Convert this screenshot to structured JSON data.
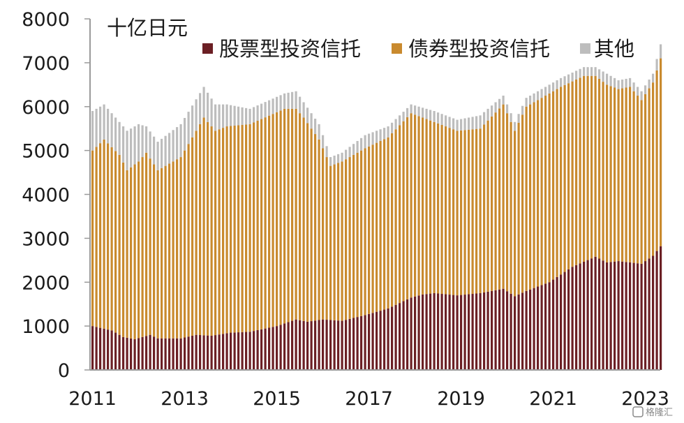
{
  "chart_data": {
    "type": "bar",
    "stacked": true,
    "unit": "十亿日元",
    "ylim": [
      0,
      8000
    ],
    "yticks": [
      0,
      1000,
      2000,
      3000,
      4000,
      5000,
      6000,
      7000,
      8000
    ],
    "xticks": [
      "2011",
      "2013",
      "2015",
      "2017",
      "2019",
      "2021",
      "2023"
    ],
    "xlim_months": [
      "2011-01",
      "2023-05"
    ],
    "grid": false,
    "legend_position": "top",
    "watermark": "格隆汇",
    "series": [
      {
        "name": "股票型投资信托",
        "color": "#6b1f24",
        "anchors": [
          [
            "2011-01",
            1000
          ],
          [
            "2011-06",
            900
          ],
          [
            "2011-09",
            750
          ],
          [
            "2011-12",
            700
          ],
          [
            "2012-04",
            800
          ],
          [
            "2012-06",
            720
          ],
          [
            "2012-12",
            720
          ],
          [
            "2013-04",
            800
          ],
          [
            "2013-08",
            780
          ],
          [
            "2014-01",
            850
          ],
          [
            "2014-06",
            870
          ],
          [
            "2015-01",
            1000
          ],
          [
            "2015-06",
            1150
          ],
          [
            "2015-09",
            1100
          ],
          [
            "2016-01",
            1150
          ],
          [
            "2016-06",
            1120
          ],
          [
            "2016-12",
            1250
          ],
          [
            "2017-06",
            1400
          ],
          [
            "2017-12",
            1650
          ],
          [
            "2018-03",
            1720
          ],
          [
            "2018-06",
            1750
          ],
          [
            "2018-12",
            1700
          ],
          [
            "2019-06",
            1750
          ],
          [
            "2019-12",
            1850
          ],
          [
            "2020-03",
            1680
          ],
          [
            "2020-06",
            1800
          ],
          [
            "2020-12",
            2000
          ],
          [
            "2021-06",
            2350
          ],
          [
            "2021-12",
            2580
          ],
          [
            "2022-03",
            2450
          ],
          [
            "2022-06",
            2480
          ],
          [
            "2022-09",
            2450
          ],
          [
            "2022-12",
            2420
          ],
          [
            "2023-03",
            2600
          ],
          [
            "2023-05",
            2820
          ]
        ]
      },
      {
        "name": "债券型投资信托",
        "color": "#c98a2e",
        "anchors": [
          [
            "2011-01",
            5000
          ],
          [
            "2011-04",
            5250
          ],
          [
            "2011-08",
            4900
          ],
          [
            "2011-10",
            4550
          ],
          [
            "2012-01",
            4750
          ],
          [
            "2012-03",
            4950
          ],
          [
            "2012-06",
            4550
          ],
          [
            "2012-12",
            4850
          ],
          [
            "2013-06",
            5750
          ],
          [
            "2013-09",
            5450
          ],
          [
            "2013-12",
            5550
          ],
          [
            "2014-06",
            5600
          ],
          [
            "2015-03",
            5950
          ],
          [
            "2015-06",
            5950
          ],
          [
            "2015-08",
            5750
          ],
          [
            "2015-12",
            5250
          ],
          [
            "2016-03",
            4650
          ],
          [
            "2016-06",
            4750
          ],
          [
            "2016-12",
            5050
          ],
          [
            "2017-06",
            5300
          ],
          [
            "2017-12",
            5850
          ],
          [
            "2018-06",
            5650
          ],
          [
            "2018-12",
            5450
          ],
          [
            "2019-06",
            5500
          ],
          [
            "2019-12",
            6050
          ],
          [
            "2020-03",
            5450
          ],
          [
            "2020-06",
            6000
          ],
          [
            "2020-09",
            6150
          ],
          [
            "2021-03",
            6450
          ],
          [
            "2021-09",
            6700
          ],
          [
            "2021-12",
            6700
          ],
          [
            "2022-03",
            6500
          ],
          [
            "2022-06",
            6400
          ],
          [
            "2022-09",
            6450
          ],
          [
            "2022-12",
            6150
          ],
          [
            "2023-03",
            6550
          ],
          [
            "2023-05",
            7100
          ]
        ]
      },
      {
        "name": "其他",
        "color": "#bdbdbd",
        "anchors": [
          [
            "2011-01",
            5900
          ],
          [
            "2011-04",
            6050
          ],
          [
            "2011-08",
            5650
          ],
          [
            "2011-10",
            5450
          ],
          [
            "2012-01",
            5600
          ],
          [
            "2012-03",
            5550
          ],
          [
            "2012-06",
            5200
          ],
          [
            "2012-12",
            5600
          ],
          [
            "2013-06",
            6450
          ],
          [
            "2013-09",
            6050
          ],
          [
            "2013-12",
            6050
          ],
          [
            "2014-06",
            5950
          ],
          [
            "2015-03",
            6300
          ],
          [
            "2015-06",
            6350
          ],
          [
            "2015-08",
            6100
          ],
          [
            "2015-12",
            5600
          ],
          [
            "2016-03",
            4850
          ],
          [
            "2016-06",
            4950
          ],
          [
            "2016-12",
            5350
          ],
          [
            "2017-06",
            5550
          ],
          [
            "2017-12",
            6050
          ],
          [
            "2018-06",
            5900
          ],
          [
            "2018-12",
            5700
          ],
          [
            "2019-06",
            5800
          ],
          [
            "2019-12",
            6250
          ],
          [
            "2020-03",
            5650
          ],
          [
            "2020-06",
            6200
          ],
          [
            "2020-09",
            6350
          ],
          [
            "2021-03",
            6650
          ],
          [
            "2021-09",
            6900
          ],
          [
            "2021-12",
            6900
          ],
          [
            "2022-03",
            6750
          ],
          [
            "2022-06",
            6600
          ],
          [
            "2022-09",
            6650
          ],
          [
            "2022-12",
            6350
          ],
          [
            "2023-03",
            6750
          ],
          [
            "2023-05",
            7420
          ]
        ]
      }
    ]
  }
}
